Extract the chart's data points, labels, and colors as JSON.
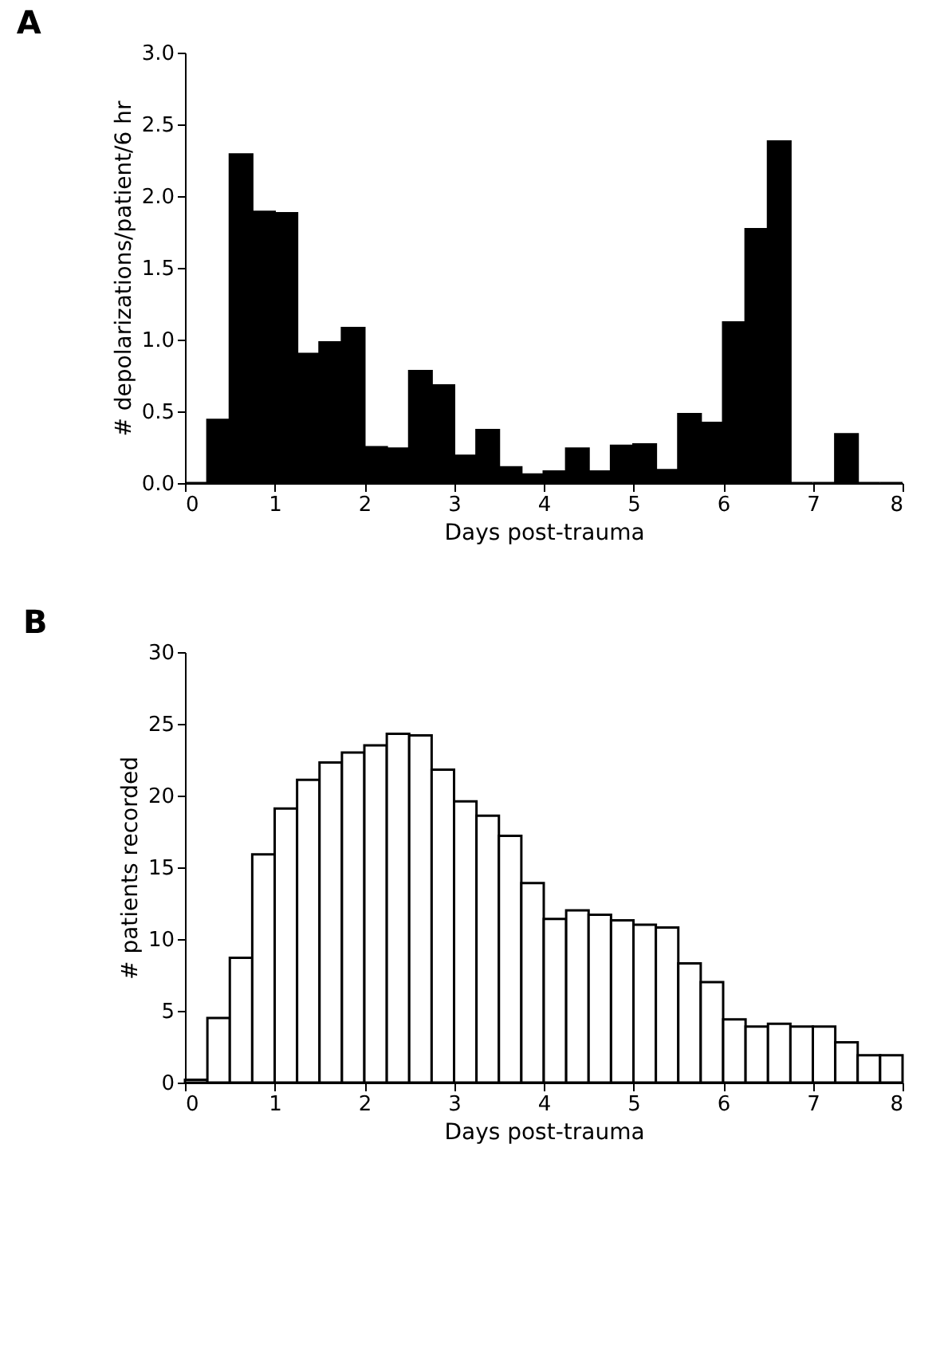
{
  "chart_data": [
    {
      "type": "histogram",
      "title": "A",
      "xlabel": "Days post-trauma",
      "ylabel": "# depolarizations/patient/6 hr",
      "color": "#000000",
      "bins": [
        0,
        0.25,
        0.5,
        0.75,
        1,
        1.25,
        1.5,
        1.75,
        2,
        2.25,
        2.5,
        2.75,
        3,
        3.25,
        3.5,
        3.75,
        4,
        4.25,
        4.5,
        4.75,
        5,
        5.25,
        5.5,
        5.75,
        6,
        6.25,
        6.5,
        6.75,
        7,
        7.25,
        7.5,
        7.75,
        8
      ],
      "values": [
        0,
        0.44,
        2.29,
        1.89,
        1.88,
        0.9,
        0.98,
        1.08,
        0.25,
        0.24,
        0.78,
        0.68,
        0.19,
        0.37,
        0.11,
        0.06,
        0.08,
        0.24,
        0.08,
        0.26,
        0.27,
        0.09,
        0.48,
        0.42,
        1.12,
        1.77,
        2.38,
        0,
        0,
        0.34,
        0,
        0
      ],
      "xlim": [
        0,
        8
      ],
      "xticks": [
        0,
        1,
        2,
        3,
        4,
        5,
        6,
        7,
        8
      ],
      "ylim": [
        0,
        3
      ],
      "yticks": [
        {
          "value": 0,
          "label": "0.0"
        },
        {
          "value": 0.5,
          "label": "0.5"
        },
        {
          "value": 1,
          "label": "1.0"
        },
        {
          "value": 1.5,
          "label": "1.5"
        },
        {
          "value": 2,
          "label": "2.0"
        },
        {
          "value": 2.5,
          "label": "2.5"
        },
        {
          "value": 3,
          "label": "3.0"
        }
      ],
      "grid": false
    },
    {
      "type": "histogram",
      "title": "B",
      "xlabel": "Days post-trauma",
      "ylabel": "# patients recorded",
      "color": "#ffffff",
      "bins": [
        0,
        0.25,
        0.5,
        0.75,
        1,
        1.25,
        1.5,
        1.75,
        2,
        2.25,
        2.5,
        2.75,
        3,
        3.25,
        3.5,
        3.75,
        4,
        4.25,
        4.5,
        4.75,
        5,
        5.25,
        5.5,
        5.75,
        6,
        6.25,
        6.5,
        6.75,
        7,
        7.25,
        7.5,
        7.75,
        8
      ],
      "values": [
        0.2,
        4.5,
        8.7,
        15.9,
        19.1,
        21.1,
        22.3,
        23.0,
        23.5,
        24.3,
        24.2,
        21.8,
        19.6,
        18.6,
        17.2,
        13.9,
        11.4,
        12.0,
        11.7,
        11.3,
        11.0,
        10.8,
        8.3,
        7.0,
        4.4,
        3.9,
        4.1,
        3.9,
        3.9,
        2.8,
        1.9,
        1.9
      ],
      "xlim": [
        0,
        8
      ],
      "xticks": [
        0,
        1,
        2,
        3,
        4,
        5,
        6,
        7,
        8
      ],
      "ylim": [
        0,
        30
      ],
      "yticks": [
        0,
        5,
        10,
        15,
        20,
        25,
        30
      ],
      "grid": false
    }
  ]
}
